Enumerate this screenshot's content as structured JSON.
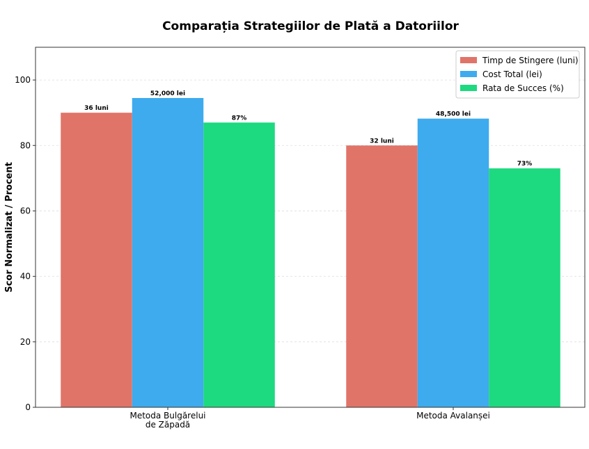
{
  "chart_data": {
    "type": "bar",
    "title": "Comparația Strategiilor de Plată a Datoriilor",
    "xlabel": "",
    "ylabel": "Scor Normalizat / Procent",
    "ylim": [
      0,
      110
    ],
    "yticks": [
      0,
      20,
      40,
      60,
      80,
      100
    ],
    "grid": true,
    "legend_position": "top-right",
    "categories": [
      [
        "Metoda Bulgărelui",
        "de Zăpadă"
      ],
      [
        "Metoda Avalanșei"
      ]
    ],
    "series": [
      {
        "name": "Timp de Stingere (luni)",
        "color": "#e07468",
        "values": [
          90,
          80
        ],
        "labels": [
          "36 luni",
          "32 luni"
        ]
      },
      {
        "name": "Cost Total (lei)",
        "color": "#3eabee",
        "values": [
          94.5,
          88.2
        ],
        "labels": [
          "52,000 lei",
          "48,500 lei"
        ]
      },
      {
        "name": "Rata de Succes (%)",
        "color": "#1dd97f",
        "values": [
          87,
          73
        ],
        "labels": [
          "87%",
          "73%"
        ]
      }
    ]
  }
}
